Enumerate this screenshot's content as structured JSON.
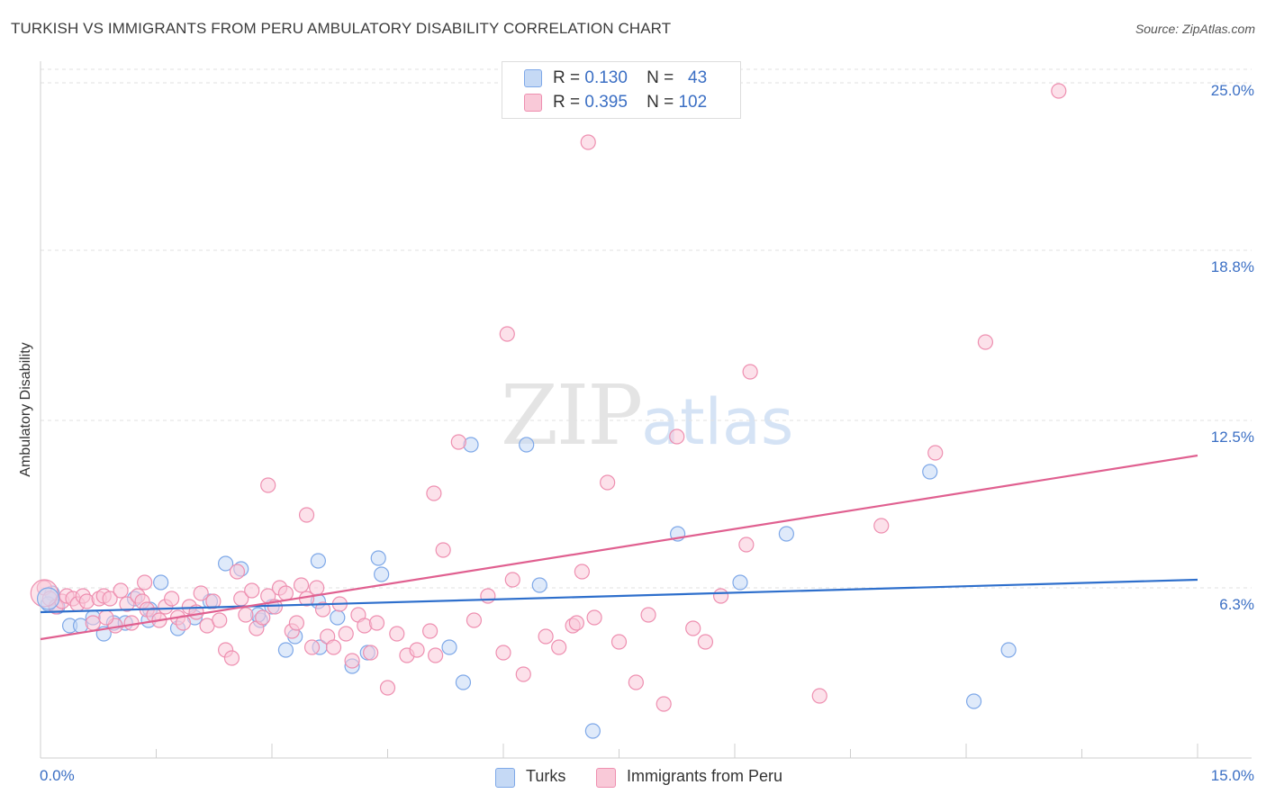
{
  "header": {
    "title": "TURKISH VS IMMIGRANTS FROM PERU AMBULATORY DISABILITY CORRELATION CHART",
    "source": "Source: ZipAtlas.com"
  },
  "watermark": {
    "part_a": "ZIP",
    "part_b": "atlas"
  },
  "legend": {
    "rows": [
      {
        "r_label": "R =",
        "r_value": "0.130",
        "n_label": "N =",
        "n_value": "43",
        "color": "#7ea8e8",
        "fill": "#c5d9f5"
      },
      {
        "r_label": "R =",
        "r_value": "0.395",
        "n_label": "N =",
        "n_value": "102",
        "color": "#ee8fb0",
        "fill": "#f9c9d8"
      }
    ]
  },
  "bottom_legend": [
    {
      "label": "Turks",
      "fill": "#c5d9f5",
      "stroke": "#7ea8e8"
    },
    {
      "label": "Immigrants from Peru",
      "fill": "#f9c9d8",
      "stroke": "#ee8fb0"
    }
  ],
  "chart_data": {
    "type": "scatter",
    "title": "TURKISH VS IMMIGRANTS FROM PERU AMBULATORY DISABILITY CORRELATION CHART",
    "xlabel": "",
    "ylabel": "Ambulatory Disability",
    "xlim": [
      0,
      15
    ],
    "ylim": [
      0,
      25.5
    ],
    "x_tick_labels": [
      "0.0%",
      "15.0%"
    ],
    "y_ticks": [
      6.3,
      12.5,
      18.8,
      25.0
    ],
    "y_tick_labels": [
      "6.3%",
      "12.5%",
      "18.8%",
      "25.0%"
    ],
    "grid": true,
    "series": [
      {
        "name": "Turks",
        "stroke": "#7ea8e8",
        "fill": "#c5d9f5",
        "line_color": "#2e6fcc",
        "trend": {
          "x0": 0,
          "y0": 5.4,
          "x1": 15,
          "y1": 6.6
        },
        "points": [
          [
            0.15,
            6.1
          ],
          [
            0.22,
            5.6
          ],
          [
            0.38,
            4.9
          ],
          [
            0.52,
            4.9
          ],
          [
            0.68,
            5.2
          ],
          [
            0.82,
            4.6
          ],
          [
            0.95,
            5.0
          ],
          [
            1.1,
            5.0
          ],
          [
            1.4,
            5.1
          ],
          [
            1.42,
            5.5
          ],
          [
            1.22,
            5.9
          ],
          [
            1.56,
            6.5
          ],
          [
            1.78,
            4.8
          ],
          [
            2.0,
            5.2
          ],
          [
            2.2,
            5.8
          ],
          [
            2.4,
            7.2
          ],
          [
            2.6,
            7.0
          ],
          [
            2.85,
            5.1
          ],
          [
            2.82,
            5.3
          ],
          [
            3.0,
            5.6
          ],
          [
            3.18,
            4.0
          ],
          [
            3.3,
            4.5
          ],
          [
            3.6,
            7.3
          ],
          [
            3.6,
            5.8
          ],
          [
            3.85,
            5.2
          ],
          [
            3.62,
            4.1
          ],
          [
            4.04,
            3.4
          ],
          [
            4.24,
            3.9
          ],
          [
            4.38,
            7.4
          ],
          [
            4.42,
            6.8
          ],
          [
            5.3,
            4.1
          ],
          [
            5.48,
            2.8
          ],
          [
            5.58,
            11.6
          ],
          [
            6.3,
            11.6
          ],
          [
            6.47,
            6.4
          ],
          [
            7.16,
            1.0
          ],
          [
            8.26,
            8.3
          ],
          [
            9.07,
            6.5
          ],
          [
            9.67,
            8.3
          ],
          [
            11.53,
            10.6
          ],
          [
            12.1,
            2.1
          ],
          [
            12.55,
            4.0
          ],
          [
            0.1,
            5.7
          ]
        ]
      },
      {
        "name": "Immigrants from Peru",
        "stroke": "#ee8fb0",
        "fill": "#f9c9d8",
        "line_color": "#e06090",
        "trend": {
          "x0": 0,
          "y0": 4.4,
          "x1": 15,
          "y1": 11.2
        },
        "points": [
          [
            0.05,
            6.3
          ],
          [
            0.12,
            5.9
          ],
          [
            0.2,
            5.6
          ],
          [
            0.28,
            5.8
          ],
          [
            0.34,
            6.0
          ],
          [
            0.42,
            5.9
          ],
          [
            0.48,
            5.7
          ],
          [
            0.55,
            6.0
          ],
          [
            0.6,
            5.8
          ],
          [
            0.68,
            5.0
          ],
          [
            0.76,
            5.9
          ],
          [
            0.82,
            6.0
          ],
          [
            0.9,
            5.9
          ],
          [
            0.97,
            4.9
          ],
          [
            1.04,
            6.2
          ],
          [
            1.12,
            5.7
          ],
          [
            1.18,
            5.0
          ],
          [
            1.26,
            6.0
          ],
          [
            1.32,
            5.8
          ],
          [
            1.38,
            5.5
          ],
          [
            1.47,
            5.3
          ],
          [
            1.54,
            5.1
          ],
          [
            1.62,
            5.6
          ],
          [
            1.7,
            5.9
          ],
          [
            1.78,
            5.2
          ],
          [
            1.85,
            5.0
          ],
          [
            1.93,
            5.6
          ],
          [
            2.02,
            5.4
          ],
          [
            2.08,
            6.1
          ],
          [
            2.16,
            4.9
          ],
          [
            2.24,
            5.8
          ],
          [
            2.32,
            5.1
          ],
          [
            2.4,
            4.0
          ],
          [
            2.48,
            3.7
          ],
          [
            2.6,
            5.9
          ],
          [
            2.66,
            5.3
          ],
          [
            2.74,
            6.2
          ],
          [
            2.8,
            4.8
          ],
          [
            2.88,
            5.2
          ],
          [
            2.95,
            6.0
          ],
          [
            3.04,
            5.6
          ],
          [
            3.1,
            6.3
          ],
          [
            3.18,
            6.1
          ],
          [
            3.26,
            4.7
          ],
          [
            3.32,
            5.0
          ],
          [
            3.38,
            6.4
          ],
          [
            3.45,
            5.9
          ],
          [
            3.52,
            4.1
          ],
          [
            3.58,
            6.3
          ],
          [
            3.66,
            5.5
          ],
          [
            3.72,
            4.5
          ],
          [
            3.8,
            4.1
          ],
          [
            3.88,
            5.7
          ],
          [
            3.96,
            4.6
          ],
          [
            4.04,
            3.6
          ],
          [
            4.12,
            5.3
          ],
          [
            4.2,
            4.9
          ],
          [
            4.28,
            3.9
          ],
          [
            4.36,
            5.0
          ],
          [
            4.5,
            2.6
          ],
          [
            4.62,
            4.6
          ],
          [
            4.75,
            3.8
          ],
          [
            4.88,
            4.0
          ],
          [
            5.05,
            4.7
          ],
          [
            5.12,
            3.8
          ],
          [
            5.22,
            7.7
          ],
          [
            5.42,
            11.7
          ],
          [
            5.62,
            5.1
          ],
          [
            5.8,
            6.0
          ],
          [
            6.0,
            3.9
          ],
          [
            6.12,
            6.6
          ],
          [
            6.26,
            3.1
          ],
          [
            6.55,
            4.5
          ],
          [
            6.72,
            4.1
          ],
          [
            6.9,
            4.9
          ],
          [
            7.02,
            6.9
          ],
          [
            7.18,
            5.2
          ],
          [
            7.35,
            10.2
          ],
          [
            7.5,
            4.3
          ],
          [
            7.72,
            2.8
          ],
          [
            7.88,
            5.3
          ],
          [
            8.08,
            2.0
          ],
          [
            8.25,
            11.9
          ],
          [
            8.46,
            4.8
          ],
          [
            8.62,
            4.3
          ],
          [
            8.82,
            6.0
          ],
          [
            9.15,
            7.9
          ],
          [
            9.2,
            14.3
          ],
          [
            10.1,
            2.3
          ],
          [
            10.9,
            8.6
          ],
          [
            11.6,
            11.3
          ],
          [
            12.25,
            15.4
          ],
          [
            13.2,
            24.7
          ],
          [
            6.05,
            15.7
          ],
          [
            7.1,
            22.8
          ],
          [
            2.95,
            10.1
          ],
          [
            3.45,
            9.0
          ],
          [
            5.1,
            9.8
          ],
          [
            6.95,
            5.0
          ],
          [
            1.35,
            6.5
          ],
          [
            0.85,
            5.2
          ],
          [
            2.55,
            6.9
          ]
        ]
      }
    ]
  }
}
